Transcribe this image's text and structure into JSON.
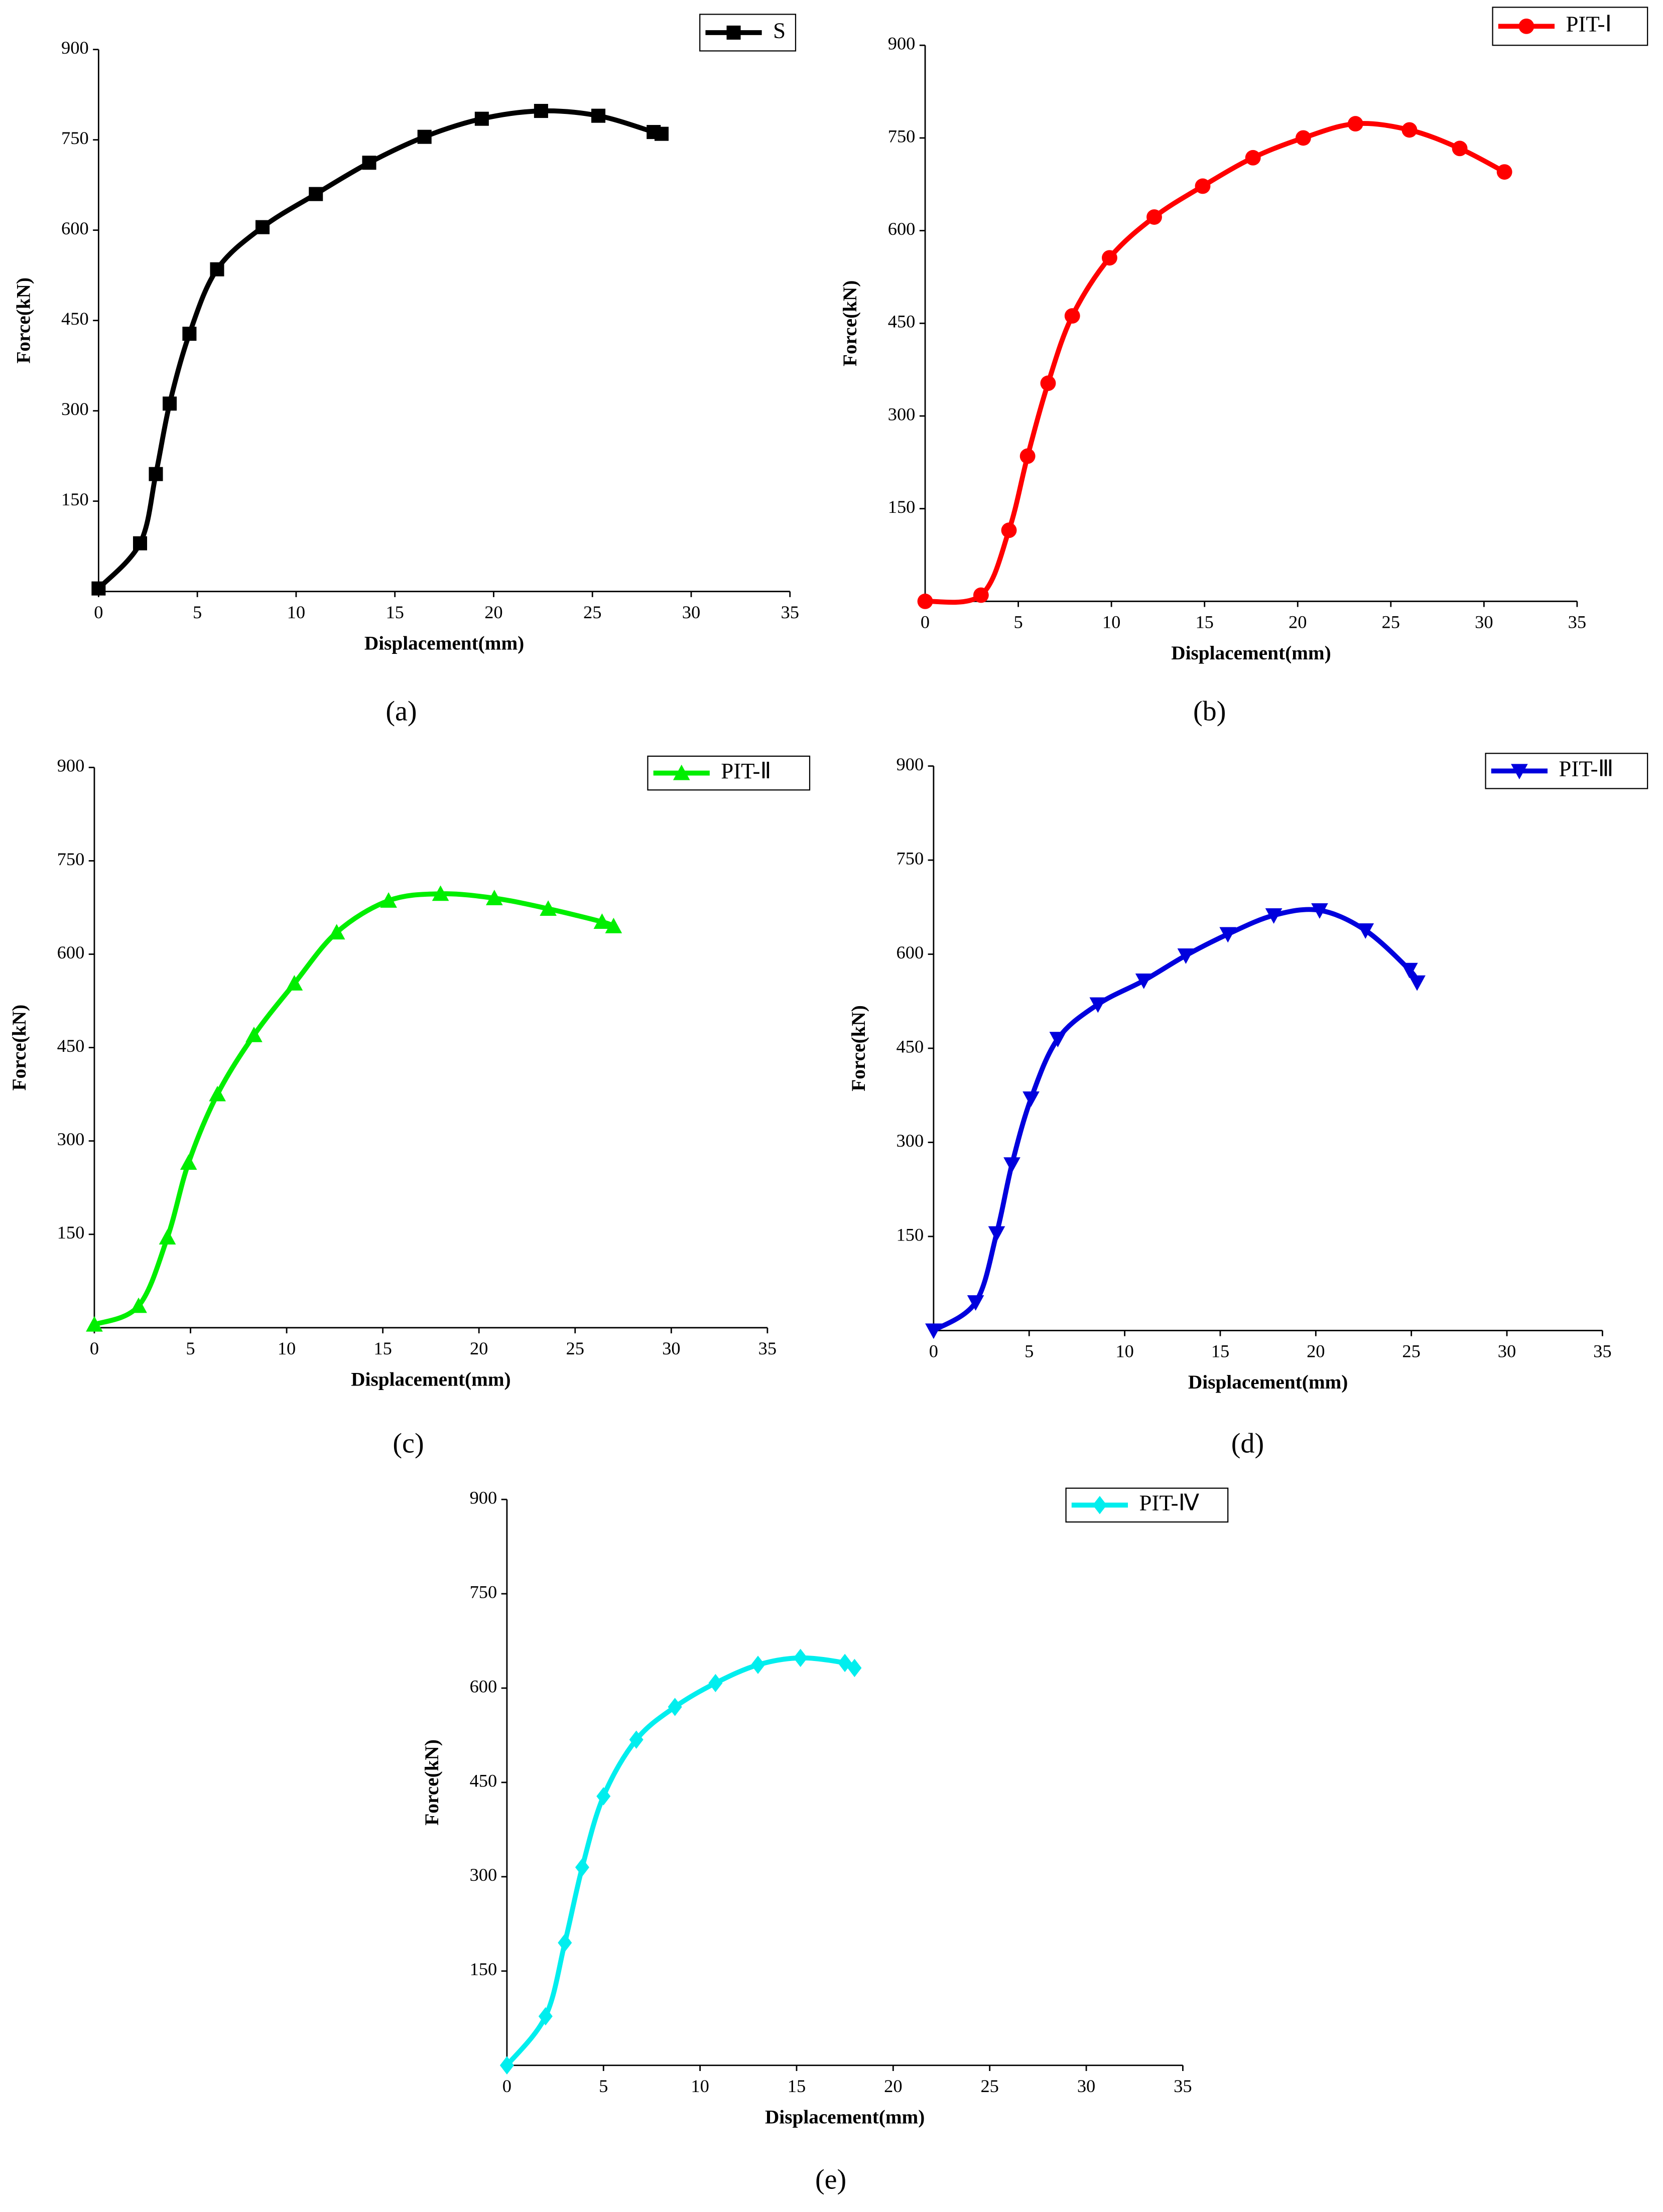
{
  "chart_data": [
    {
      "type": "line",
      "label": "(a)",
      "xlabel": "Displacement(mm)",
      "ylabel": "Force(kN)",
      "xlim": [
        0,
        35
      ],
      "ylim": [
        0,
        900
      ],
      "xticks": [
        0,
        5,
        10,
        15,
        20,
        25,
        30,
        35
      ],
      "yticks": [
        150,
        300,
        450,
        600,
        750,
        900
      ],
      "legend": "upper right",
      "series": [
        {
          "name": "S",
          "color": "#000000",
          "marker": "square",
          "x": [
            0,
            2.1,
            2.9,
            3.6,
            4.6,
            6.0,
            8.3,
            11.0,
            13.7,
            16.5,
            19.4,
            22.4,
            25.3,
            28.1,
            28.5
          ],
          "values": [
            5,
            80,
            195,
            312,
            428,
            535,
            605,
            660,
            712,
            755,
            785,
            798,
            790,
            763,
            760
          ]
        }
      ]
    },
    {
      "type": "line",
      "label": "(b)",
      "xlabel": "Displacement(mm)",
      "ylabel": "Force(kN)",
      "xlim": [
        0,
        35
      ],
      "ylim": [
        0,
        900
      ],
      "xticks": [
        0,
        5,
        10,
        15,
        20,
        25,
        30,
        35
      ],
      "yticks": [
        150,
        300,
        450,
        600,
        750,
        900
      ],
      "legend": "upper right",
      "series": [
        {
          "name": "PIT-Ⅰ",
          "color": "#ff0000",
          "marker": "circle",
          "x": [
            0,
            3.0,
            4.5,
            5.5,
            6.6,
            7.9,
            9.9,
            12.3,
            14.9,
            17.6,
            20.3,
            23.1,
            26.0,
            28.7,
            31.1
          ],
          "values": [
            0,
            10,
            115,
            235,
            353,
            462,
            556,
            622,
            672,
            718,
            750,
            773,
            763,
            733,
            695
          ]
        }
      ]
    },
    {
      "type": "line",
      "label": "(c)",
      "xlabel": "Displacement(mm)",
      "ylabel": "Force(kN)",
      "xlim": [
        0,
        35
      ],
      "ylim": [
        0,
        900
      ],
      "xticks": [
        0,
        5,
        10,
        15,
        20,
        25,
        30,
        35
      ],
      "yticks": [
        150,
        300,
        450,
        600,
        750,
        900
      ],
      "legend": "upper right",
      "series": [
        {
          "name": "PIT-Ⅱ",
          "color": "#00ee00",
          "marker": "triangle-up",
          "x": [
            0,
            2.3,
            3.8,
            4.9,
            6.4,
            8.3,
            10.4,
            12.6,
            15.3,
            18.0,
            20.8,
            23.6,
            26.4,
            27.0
          ],
          "values": [
            5,
            35,
            145,
            265,
            375,
            470,
            553,
            635,
            686,
            697,
            690,
            673,
            652,
            645
          ]
        }
      ]
    },
    {
      "type": "line",
      "label": "(d)",
      "xlabel": "Displacement(mm)",
      "ylabel": "Force(kN)",
      "xlim": [
        0,
        35
      ],
      "ylim": [
        0,
        900
      ],
      "xticks": [
        0,
        5,
        10,
        15,
        20,
        25,
        30,
        35
      ],
      "yticks": [
        150,
        300,
        450,
        600,
        750,
        900
      ],
      "legend": "upper right",
      "series": [
        {
          "name": "PIT-Ⅲ",
          "color": "#0000dd",
          "marker": "triangle-down",
          "x": [
            0,
            2.2,
            3.3,
            4.1,
            5.1,
            6.5,
            8.6,
            11.0,
            13.2,
            15.4,
            17.8,
            20.2,
            22.6,
            24.9,
            25.3
          ],
          "values": [
            0,
            45,
            155,
            265,
            370,
            465,
            520,
            558,
            598,
            632,
            662,
            670,
            638,
            575,
            555
          ]
        }
      ]
    },
    {
      "type": "line",
      "label": "(e)",
      "xlabel": "Displacement(mm)",
      "ylabel": "Force(kN)",
      "xlim": [
        0,
        35
      ],
      "ylim": [
        0,
        900
      ],
      "xticks": [
        0,
        5,
        10,
        15,
        20,
        25,
        30,
        35
      ],
      "yticks": [
        150,
        300,
        450,
        600,
        750,
        900
      ],
      "legend": "upper right",
      "series": [
        {
          "name": "PIT-Ⅳ",
          "color": "#00eeee",
          "marker": "diamond",
          "x": [
            0,
            2.0,
            3.0,
            3.9,
            5.0,
            6.7,
            8.7,
            10.8,
            13.0,
            15.2,
            17.5,
            18.0
          ],
          "values": [
            0,
            78,
            195,
            315,
            428,
            518,
            570,
            608,
            637,
            648,
            640,
            632
          ]
        }
      ]
    }
  ]
}
